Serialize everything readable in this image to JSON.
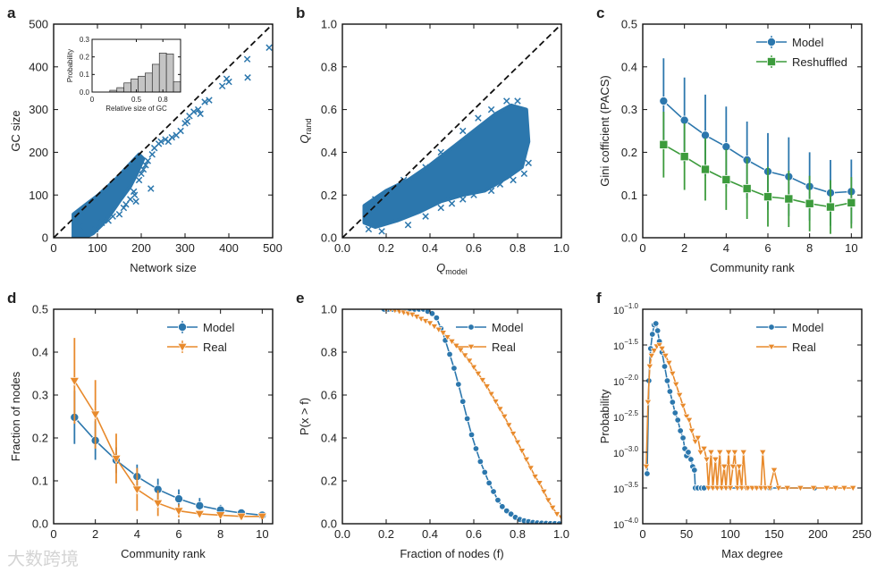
{
  "watermark": "大数跨境",
  "colors": {
    "blue": "#2c77ad",
    "green": "#3c9b3c",
    "orange": "#e88a2c",
    "hist": "#c4c4c4"
  },
  "chart_data": [
    {
      "panel": "a",
      "type": "scatter",
      "xlabel": "Network size",
      "ylabel": "GC size",
      "xlim": [
        0,
        500
      ],
      "ylim": [
        0,
        500
      ],
      "xticks": [
        0,
        100,
        200,
        300,
        400,
        500
      ],
      "yticks": [
        0,
        100,
        200,
        300,
        400,
        500
      ],
      "xticklabels": [
        "0",
        "100",
        "200",
        "300",
        "400",
        "500"
      ],
      "yticklabels": [
        "0",
        "100",
        "200",
        "300",
        "400",
        "500"
      ],
      "diagonal": true,
      "marker": "x",
      "dense_region": [
        [
          45,
          0
        ],
        [
          45,
          55
        ],
        [
          70,
          75
        ],
        [
          100,
          98
        ],
        [
          140,
          135
        ],
        [
          170,
          168
        ],
        [
          195,
          195
        ],
        [
          205,
          185
        ],
        [
          190,
          150
        ],
        [
          175,
          120
        ],
        [
          150,
          85
        ],
        [
          130,
          55
        ],
        [
          110,
          30
        ],
        [
          90,
          10
        ],
        [
          70,
          0
        ]
      ],
      "points": [
        [
          60,
          25
        ],
        [
          95,
          20
        ],
        [
          110,
          35
        ],
        [
          125,
          40
        ],
        [
          135,
          50
        ],
        [
          150,
          55
        ],
        [
          160,
          70
        ],
        [
          165,
          78
        ],
        [
          175,
          90
        ],
        [
          185,
          100
        ],
        [
          183,
          108
        ],
        [
          188,
          85
        ],
        [
          195,
          135
        ],
        [
          200,
          150
        ],
        [
          205,
          160
        ],
        [
          210,
          170
        ],
        [
          215,
          180
        ],
        [
          222,
          115
        ],
        [
          225,
          195
        ],
        [
          230,
          210
        ],
        [
          240,
          220
        ],
        [
          245,
          225
        ],
        [
          255,
          230
        ],
        [
          262,
          225
        ],
        [
          270,
          235
        ],
        [
          280,
          240
        ],
        [
          290,
          250
        ],
        [
          300,
          268
        ],
        [
          305,
          272
        ],
        [
          310,
          285
        ],
        [
          320,
          295
        ],
        [
          330,
          300
        ],
        [
          335,
          290
        ],
        [
          345,
          318
        ],
        [
          355,
          322
        ],
        [
          385,
          355
        ],
        [
          395,
          372
        ],
        [
          400,
          365
        ],
        [
          442,
          418
        ],
        [
          443,
          375
        ],
        [
          492,
          445
        ]
      ],
      "inset": {
        "type": "bar",
        "xlabel": "Relative size of GC",
        "ylabel": "Probability",
        "xlim": [
          0,
          1
        ],
        "ylim": [
          0,
          0.3
        ],
        "xticks": [
          0,
          0.5,
          0.8
        ],
        "xticklabels": [
          "0",
          "0.5",
          "0.8"
        ],
        "yticks": [
          0,
          0.1,
          0.2,
          0.3
        ],
        "yticklabels": [
          "0.0",
          "0.1",
          "0.2",
          "0.3"
        ],
        "bin_width": 0.08,
        "bin_starts": [
          0.2,
          0.28,
          0.36,
          0.44,
          0.52,
          0.6,
          0.68,
          0.76,
          0.84,
          0.92
        ],
        "values": [
          0.01,
          0.025,
          0.052,
          0.075,
          0.09,
          0.108,
          0.158,
          0.222,
          0.217,
          0.058
        ]
      }
    },
    {
      "panel": "b",
      "type": "scatter",
      "xlabel": "Q",
      "xlabel_sub": "model",
      "ylabel": "Q",
      "ylabel_sub": "rand",
      "xlim": [
        0,
        1
      ],
      "ylim": [
        0,
        1
      ],
      "xticks": [
        0,
        0.2,
        0.4,
        0.6,
        0.8,
        1.0
      ],
      "yticks": [
        0,
        0.2,
        0.4,
        0.6,
        0.8,
        1.0
      ],
      "xticklabels": [
        "0.0",
        "0.2",
        "0.4",
        "0.6",
        "0.8",
        "1.0"
      ],
      "yticklabels": [
        "0.0",
        "0.2",
        "0.4",
        "0.6",
        "0.8",
        "1.0"
      ],
      "diagonal": true,
      "marker": "x",
      "dense_region": [
        [
          0.1,
          0.07
        ],
        [
          0.1,
          0.15
        ],
        [
          0.2,
          0.22
        ],
        [
          0.3,
          0.27
        ],
        [
          0.4,
          0.34
        ],
        [
          0.5,
          0.42
        ],
        [
          0.6,
          0.5
        ],
        [
          0.7,
          0.58
        ],
        [
          0.77,
          0.62
        ],
        [
          0.84,
          0.6
        ],
        [
          0.85,
          0.45
        ],
        [
          0.82,
          0.33
        ],
        [
          0.75,
          0.28
        ],
        [
          0.65,
          0.22
        ],
        [
          0.55,
          0.2
        ],
        [
          0.45,
          0.17
        ],
        [
          0.35,
          0.12
        ],
        [
          0.25,
          0.08
        ],
        [
          0.15,
          0.05
        ]
      ],
      "points": [
        [
          0.12,
          0.04
        ],
        [
          0.18,
          0.03
        ],
        [
          0.3,
          0.06
        ],
        [
          0.38,
          0.1
        ],
        [
          0.45,
          0.14
        ],
        [
          0.5,
          0.16
        ],
        [
          0.55,
          0.18
        ],
        [
          0.6,
          0.2
        ],
        [
          0.68,
          0.22
        ],
        [
          0.72,
          0.25
        ],
        [
          0.78,
          0.27
        ],
        [
          0.83,
          0.3
        ],
        [
          0.85,
          0.35
        ],
        [
          0.8,
          0.64
        ],
        [
          0.75,
          0.64
        ],
        [
          0.68,
          0.6
        ],
        [
          0.62,
          0.56
        ],
        [
          0.55,
          0.5
        ],
        [
          0.45,
          0.4
        ],
        [
          0.38,
          0.33
        ],
        [
          0.28,
          0.27
        ],
        [
          0.2,
          0.2
        ],
        [
          0.15,
          0.18
        ]
      ]
    },
    {
      "panel": "c",
      "type": "line",
      "xlabel": "Community rank",
      "ylabel": "Gini cofficient (PACS)",
      "xlim": [
        0,
        10.5
      ],
      "ylim": [
        0,
        0.5
      ],
      "xticks": [
        0,
        2,
        4,
        6,
        8,
        10
      ],
      "yticks": [
        0,
        0.1,
        0.2,
        0.3,
        0.4,
        0.5
      ],
      "xticklabels": [
        "0",
        "2",
        "4",
        "6",
        "8",
        "10"
      ],
      "yticklabels": [
        "0.0",
        "0.1",
        "0.2",
        "0.3",
        "0.4",
        "0.5"
      ],
      "legend": "top-right",
      "x": [
        1,
        2,
        3,
        4,
        5,
        6,
        7,
        8,
        9,
        10
      ],
      "series": [
        {
          "name": "Model",
          "color": "blue",
          "marker": "circle",
          "values": [
            0.32,
            0.275,
            0.24,
            0.213,
            0.182,
            0.155,
            0.143,
            0.12,
            0.105,
            0.108
          ],
          "errors": [
            0.1,
            0.1,
            0.095,
            0.094,
            0.09,
            0.09,
            0.092,
            0.08,
            0.077,
            0.075
          ]
        },
        {
          "name": "Reshuffled",
          "color": "green",
          "marker": "square",
          "values": [
            0.218,
            0.19,
            0.16,
            0.136,
            0.115,
            0.096,
            0.091,
            0.08,
            0.072,
            0.082
          ],
          "errors": [
            0.077,
            0.078,
            0.073,
            0.071,
            0.071,
            0.07,
            0.066,
            0.065,
            0.063,
            0.06
          ]
        }
      ]
    },
    {
      "panel": "d",
      "type": "line",
      "xlabel": "Community rank",
      "ylabel": "Fraction of nodes",
      "xlim": [
        0,
        10.5
      ],
      "ylim": [
        0,
        0.5
      ],
      "xticks": [
        0,
        2,
        4,
        6,
        8,
        10
      ],
      "yticks": [
        0,
        0.1,
        0.2,
        0.3,
        0.4,
        0.5
      ],
      "xticklabels": [
        "0",
        "2",
        "4",
        "6",
        "8",
        "10"
      ],
      "yticklabels": [
        "0.0",
        "0.1",
        "0.2",
        "0.3",
        "0.4",
        "0.5"
      ],
      "legend": "top-right",
      "x": [
        1,
        2,
        3,
        4,
        5,
        6,
        7,
        8,
        9,
        10
      ],
      "series": [
        {
          "name": "Model",
          "color": "blue",
          "marker": "circle",
          "values": [
            0.248,
            0.194,
            0.148,
            0.11,
            0.08,
            0.058,
            0.042,
            0.032,
            0.025,
            0.02
          ],
          "errors": [
            0.062,
            0.045,
            0.03,
            0.028,
            0.025,
            0.022,
            0.018,
            0.012,
            0.008,
            0.005
          ]
        },
        {
          "name": "Real",
          "color": "orange",
          "marker": "triangle-down",
          "values": [
            0.333,
            0.255,
            0.152,
            0.08,
            0.048,
            0.03,
            0.023,
            0.02,
            0.017,
            0.017
          ],
          "errors": [
            0.1,
            0.08,
            0.058,
            0.05,
            0.03,
            0.015,
            0.008,
            0.006,
            0.005,
            0.004
          ]
        }
      ]
    },
    {
      "panel": "e",
      "type": "line",
      "xlabel": "Fraction of nodes (f)",
      "ylabel": "P(x > f)",
      "xlim": [
        0,
        1
      ],
      "ylim": [
        0,
        1
      ],
      "xticks": [
        0,
        0.2,
        0.4,
        0.6,
        0.8,
        1.0
      ],
      "yticks": [
        0,
        0.2,
        0.4,
        0.6,
        0.8,
        1.0
      ],
      "xticklabels": [
        "0.0",
        "0.2",
        "0.4",
        "0.6",
        "0.8",
        "1.0"
      ],
      "yticklabels": [
        "0.0",
        "0.2",
        "0.4",
        "0.6",
        "0.8",
        "1.0"
      ],
      "legend": "top-right",
      "series": [
        {
          "name": "Model",
          "color": "blue",
          "marker": "circle",
          "small": true,
          "x": [
            0.19,
            0.21,
            0.23,
            0.25,
            0.27,
            0.29,
            0.31,
            0.33,
            0.35,
            0.37,
            0.39,
            0.41,
            0.43,
            0.45,
            0.47,
            0.49,
            0.51,
            0.53,
            0.55,
            0.57,
            0.59,
            0.61,
            0.63,
            0.65,
            0.67,
            0.69,
            0.71,
            0.73,
            0.75,
            0.77,
            0.79,
            0.81,
            0.83,
            0.85,
            0.87,
            0.89,
            0.91,
            0.93,
            0.95,
            0.97,
            0.99
          ],
          "values": [
            1,
            1,
            1,
            1,
            1,
            1,
            1,
            1,
            1,
            1,
            0.99,
            0.98,
            0.96,
            0.91,
            0.855,
            0.79,
            0.725,
            0.65,
            0.57,
            0.49,
            0.415,
            0.35,
            0.29,
            0.24,
            0.19,
            0.15,
            0.11,
            0.08,
            0.06,
            0.045,
            0.03,
            0.02,
            0.014,
            0.01,
            0.006,
            0.004,
            0.003,
            0.002,
            0.001,
            0.001,
            0
          ]
        },
        {
          "name": "Real",
          "color": "orange",
          "marker": "triangle-down",
          "small": true,
          "x": [
            0.2,
            0.22,
            0.24,
            0.26,
            0.28,
            0.3,
            0.32,
            0.34,
            0.36,
            0.38,
            0.4,
            0.42,
            0.44,
            0.46,
            0.48,
            0.5,
            0.52,
            0.54,
            0.56,
            0.58,
            0.6,
            0.62,
            0.64,
            0.66,
            0.68,
            0.7,
            0.72,
            0.74,
            0.76,
            0.78,
            0.8,
            0.82,
            0.84,
            0.86,
            0.88,
            0.9,
            0.92,
            0.94,
            0.96,
            0.98,
            1.0
          ],
          "values": [
            1,
            1,
            0.995,
            0.99,
            0.985,
            0.98,
            0.975,
            0.965,
            0.955,
            0.945,
            0.935,
            0.92,
            0.905,
            0.89,
            0.87,
            0.85,
            0.83,
            0.81,
            0.785,
            0.76,
            0.73,
            0.7,
            0.67,
            0.64,
            0.605,
            0.57,
            0.535,
            0.5,
            0.46,
            0.42,
            0.38,
            0.34,
            0.3,
            0.26,
            0.22,
            0.19,
            0.15,
            0.11,
            0.075,
            0.045,
            0.03
          ]
        }
      ]
    },
    {
      "panel": "f",
      "type": "line",
      "yscale": "log",
      "xlabel": "Max degree",
      "ylabel": "Probability",
      "xlim": [
        0,
        250
      ],
      "ylim_log10": [
        -4.0,
        -1.0
      ],
      "xticks": [
        0,
        50,
        100,
        150,
        200,
        250
      ],
      "xticklabels": [
        "0",
        "50",
        "100",
        "150",
        "200",
        "250"
      ],
      "yticks_log10": [
        -4.0,
        -3.5,
        -3.0,
        -2.5,
        -2.0,
        -1.5,
        -1.0
      ],
      "yticklabels": [
        "−4.0",
        "−3.5",
        "−3.0",
        "−2.5",
        "−2.0",
        "−1.5",
        "−1.0"
      ],
      "ytick_base": "10",
      "legend": "top-right",
      "series": [
        {
          "name": "Model",
          "color": "blue",
          "marker": "circle",
          "small": true,
          "x": [
            5,
            7,
            9,
            11,
            13,
            15,
            17,
            19,
            22,
            25,
            28,
            31,
            34,
            37,
            40,
            43,
            46,
            48,
            50,
            52,
            55,
            57,
            59,
            60,
            63,
            67,
            70,
            145,
            196
          ],
          "log10_values": [
            -3.3,
            -2.0,
            -1.55,
            -1.35,
            -1.22,
            -1.2,
            -1.3,
            -1.45,
            -1.6,
            -1.8,
            -2.0,
            -2.15,
            -2.3,
            -2.45,
            -2.55,
            -2.7,
            -2.8,
            -2.95,
            -3.05,
            -3.0,
            -3.1,
            -3.2,
            -3.25,
            -3.5,
            -3.5,
            -3.5,
            -3.5,
            -3.5,
            -3.5
          ]
        },
        {
          "name": "Real",
          "color": "orange",
          "marker": "triangle-down",
          "small": true,
          "x": [
            4,
            6,
            8,
            10,
            13,
            16,
            19,
            22,
            26,
            30,
            34,
            38,
            42,
            46,
            50,
            53,
            56,
            60,
            63,
            66,
            70,
            73,
            75,
            78,
            80,
            83,
            85,
            88,
            90,
            93,
            95,
            98,
            100,
            103,
            105,
            108,
            110,
            113,
            115,
            118,
            120,
            125,
            130,
            135,
            137,
            140,
            145,
            150,
            155,
            165,
            180,
            195,
            210,
            220,
            230,
            240
          ],
          "log10_values": [
            -3.2,
            -2.3,
            -1.8,
            -1.65,
            -1.58,
            -1.52,
            -1.5,
            -1.55,
            -1.65,
            -1.75,
            -1.9,
            -2.05,
            -2.2,
            -2.35,
            -2.5,
            -2.55,
            -2.7,
            -2.85,
            -2.8,
            -3.0,
            -2.95,
            -3.1,
            -3.5,
            -3.0,
            -3.5,
            -3.1,
            -3.5,
            -3.0,
            -3.5,
            -3.2,
            -3.5,
            -3.0,
            -3.5,
            -3.2,
            -3.0,
            -3.5,
            -3.2,
            -3.5,
            -3.0,
            -3.5,
            -3.5,
            -3.5,
            -3.5,
            -3.5,
            -3.0,
            -3.5,
            -3.5,
            -3.25,
            -3.5,
            -3.5,
            -3.5,
            -3.5,
            -3.5,
            -3.5,
            -3.5,
            -3.5
          ]
        }
      ]
    }
  ]
}
